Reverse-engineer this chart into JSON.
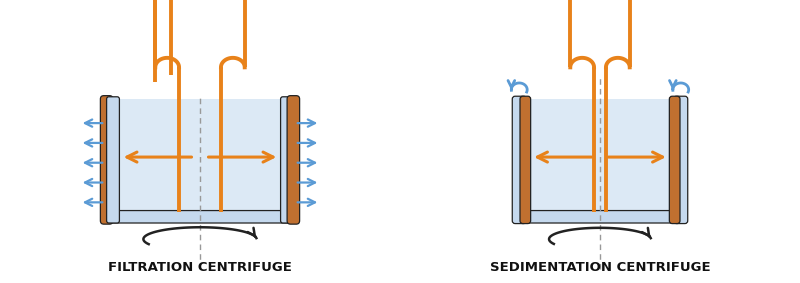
{
  "bg_color": "#ffffff",
  "orange": "#E8821A",
  "blue_arrow": "#5B9BD5",
  "blue_fill": "#C5D9EE",
  "blue_inner": "#DCE9F5",
  "brown_border": "#C07030",
  "black": "#222222",
  "dashed_color": "#999999",
  "label_color": "#111111",
  "label1": "FILTRATION CENTRIFUGE",
  "label2": "SEDIMENTATION CENTRIFUGE",
  "label_fontsize": 9.5,
  "watermark_color": "#dde8f0"
}
